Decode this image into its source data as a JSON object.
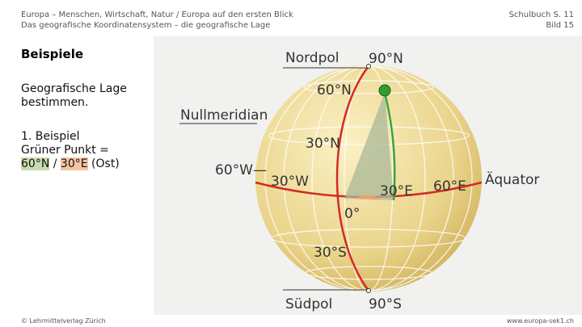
{
  "header": {
    "left": [
      "Europa – Menschen, Wirtschaft, Natur / Europa auf den ersten Blick",
      "Das geografische Koordinatensystem – die geografische Lage"
    ],
    "right": [
      "Schulbuch S. 11",
      "Bild 15"
    ]
  },
  "content": {
    "heading": "Beispiele",
    "intro": [
      "Geografische Lage",
      "bestimmen."
    ],
    "example_title": "1. Beispiel",
    "line1": "Grüner Punkt =",
    "lat": "60°N",
    "sep": "/",
    "lon": "30°E",
    "suffix": "(Ost)"
  },
  "diagram": {
    "labels": {
      "north_pole": "Nordpol",
      "n90": "90°N",
      "n60": "60°N",
      "prime_meridian": "Nullmeridian",
      "n30": "30°N",
      "w60": "60°W—",
      "w30": "30°W",
      "e30": "30°E",
      "e60": "60°E",
      "equator": "Äquator",
      "zero": "0°",
      "s30": "30°S",
      "south_pole": "Südpol",
      "s90": "90°S"
    }
  },
  "footer": {
    "left": "© Lehrmittelverlag Zürich",
    "right": "www.europa-sek1.ch"
  }
}
